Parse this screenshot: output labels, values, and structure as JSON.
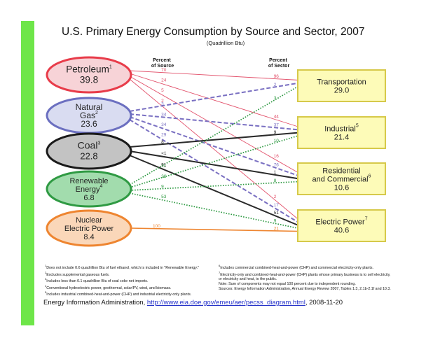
{
  "title": "U.S. Primary Energy Consumption by Source and Sector, 2007",
  "subtitle": "(Quadrillion Btu)",
  "col_source_heading": [
    "Percent",
    "of Source"
  ],
  "col_sector_heading": [
    "Percent",
    "of Sector"
  ],
  "sources": [
    {
      "lines": [
        "Petroleum",
        "39.8"
      ],
      "sup": "1",
      "fill": "#f7d3d7",
      "stroke": "#e83c4a"
    },
    {
      "lines": [
        "Natural",
        "Gas",
        "23.6"
      ],
      "sup": "2",
      "fill": "#d9dcf1",
      "stroke": "#6b6fc0"
    },
    {
      "lines": [
        "Coal",
        "22.8"
      ],
      "sup": "3",
      "fill": "#c3c3c3",
      "stroke": "#1a1a1a"
    },
    {
      "lines": [
        "Renewable",
        "Energy",
        "6.8"
      ],
      "sup": "4",
      "fill": "#a2dcad",
      "stroke": "#2f9a43"
    },
    {
      "lines": [
        "Nuclear",
        "Electric Power",
        "8.4"
      ],
      "sup": "",
      "fill": "#fad7b9",
      "stroke": "#ee8530"
    }
  ],
  "sectors": [
    {
      "lines": [
        "Transportation",
        "29.0"
      ],
      "sup": ""
    },
    {
      "lines": [
        "Industrial",
        "21.4"
      ],
      "sup": "5"
    },
    {
      "lines": [
        "Residential",
        "and Commercial",
        "10.6"
      ],
      "sup": "6"
    },
    {
      "lines": [
        "Electric Power",
        "40.6"
      ],
      "sup": "7"
    }
  ],
  "flows": [
    {
      "source": 0,
      "sector": 0,
      "pct_source": "70",
      "pct_sector": "96"
    },
    {
      "source": 0,
      "sector": 1,
      "pct_source": "24",
      "pct_sector": "44"
    },
    {
      "source": 0,
      "sector": 2,
      "pct_source": "5",
      "pct_sector": "16"
    },
    {
      "source": 0,
      "sector": 3,
      "pct_source": "2",
      "pct_sector": "2"
    },
    {
      "source": 1,
      "sector": 0,
      "pct_source": "3",
      "pct_sector": "2"
    },
    {
      "source": 1,
      "sector": 1,
      "pct_source": "34",
      "pct_sector": "37"
    },
    {
      "source": 1,
      "sector": 2,
      "pct_source": "34",
      "pct_sector": "76"
    },
    {
      "source": 1,
      "sector": 3,
      "pct_source": "29",
      "pct_sector": "17"
    },
    {
      "source": 2,
      "sector": 1,
      "pct_source": "8",
      "pct_sector": "9"
    },
    {
      "source": 2,
      "sector": 2,
      "pct_source": "<1",
      "pct_sector": "1"
    },
    {
      "source": 2,
      "sector": 3,
      "pct_source": "91",
      "pct_sector": "51"
    },
    {
      "source": 3,
      "sector": 0,
      "pct_source": "11",
      "pct_sector": "3"
    },
    {
      "source": 3,
      "sector": 1,
      "pct_source": "26",
      "pct_sector": "10"
    },
    {
      "source": 3,
      "sector": 2,
      "pct_source": "9",
      "pct_sector": "8"
    },
    {
      "source": 3,
      "sector": 3,
      "pct_source": "53",
      "pct_sector": "9"
    },
    {
      "source": 4,
      "sector": 3,
      "pct_source": "100",
      "pct_sector": "21"
    }
  ],
  "footnotes_left": [
    {
      "num": "1",
      "text": "Does not include 0.6 quadrillion Btu of fuel ethanol, which is included in \"Renewable Energy.\""
    },
    {
      "num": "2",
      "text": "Excludes supplemental gaseous fuels."
    },
    {
      "num": "3",
      "text": "Includes less than 0.1 quadrillion Btu of coal coke net imports."
    },
    {
      "num": "4",
      "text": "Conventional hydroelectric power, geothermal, solar/PV, wind, and biomass."
    },
    {
      "num": "5",
      "text": "Includes industrial combined-heat-and-power (CHP) and industrial electricity-only plants."
    }
  ],
  "footnotes_right": [
    {
      "num": "6",
      "text": "Includes commercial combined-heat-and-power (CHP) and commercial electricity-only plants."
    },
    {
      "num": "7",
      "text": "Electricity-only and combined-heat-and-power (CHP) plants whose primary business is to sell electricity,"
    },
    {
      "num": "",
      "text": "or electricity and heat, to the public."
    },
    {
      "num": "",
      "text": "Note:  Sum of components may not equal 100 percent due to independent rounding."
    },
    {
      "num": "",
      "text": "Sources:  Energy Information Administration, Annual Energy Review 2007, Tables 1.3, 2.1b-2.1f and 10.3."
    }
  ],
  "source_line": {
    "prefix": "Energy Information Administration, ",
    "url": "http://www.eia.doe.gov/emeu/aer/pecss_diagram.html",
    "suffix": ", 2008-11-20"
  },
  "colors": {
    "accent_bar": "#6ee649",
    "sector_fill": "#fdfbb8",
    "sector_stroke": "#d6c94a",
    "flow_petroleum": "#e2506a",
    "flow_gas": "#7a70c2",
    "flow_coal": "#2a2a2a",
    "flow_renewable": "#2f9a43",
    "flow_nuclear": "#ee8530"
  }
}
